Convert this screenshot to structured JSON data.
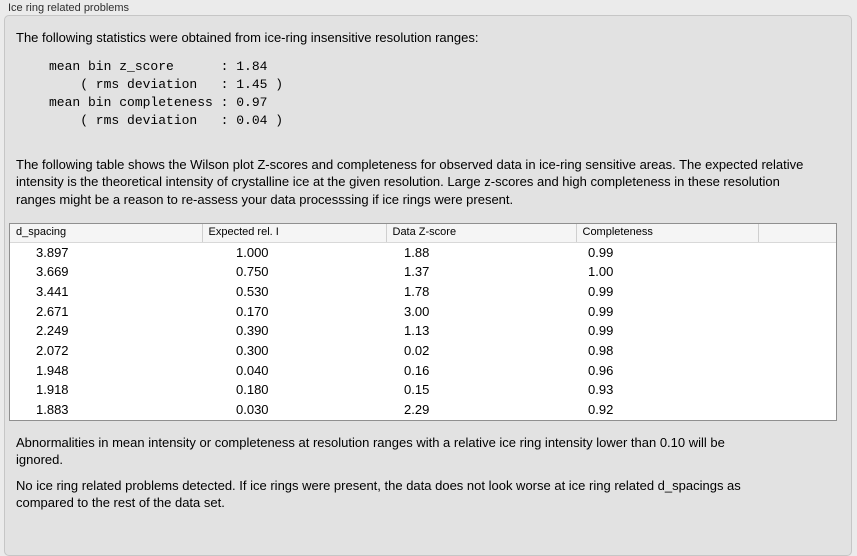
{
  "panel": {
    "label": "Ice ring related problems"
  },
  "colors": {
    "window_bg": "#ebebeb",
    "panel_bg": "#e2e2e2",
    "panel_border": "#c6c6c6",
    "table_bg": "#ffffff",
    "table_border": "#8f8f8f",
    "header_bg": "#f5f5f5",
    "text": "#000000"
  },
  "intro": "The following statistics were obtained from ice-ring insensitive resolution ranges:",
  "stats": {
    "lines": [
      "mean bin z_score      : 1.84",
      "    ( rms deviation   : 1.45 )",
      "mean bin completeness : 0.97",
      "    ( rms deviation   : 0.04 )"
    ],
    "mean_bin_z_score": "1.84",
    "z_score_rms_deviation": "1.45",
    "mean_bin_completeness": "0.97",
    "completeness_rms_deviation": "0.04"
  },
  "table_description": "The following table shows the Wilson plot Z-scores and completeness for observed data in ice-ring sensitive areas. The expected relative intensity is the theoretical intensity of crystalline ice at the given resolution. Large z-scores and high completeness in these resolution ranges might be a reason to re-assess your data processsing if ice rings were present.",
  "table": {
    "headers": [
      "d_spacing",
      "Expected rel. I",
      "Data Z-score",
      "Completeness",
      ""
    ],
    "rows": [
      [
        "3.897",
        "1.000",
        "1.88",
        "0.99"
      ],
      [
        "3.669",
        "0.750",
        "1.37",
        "1.00"
      ],
      [
        "3.441",
        "0.530",
        "1.78",
        "0.99"
      ],
      [
        "2.671",
        "0.170",
        "3.00",
        "0.99"
      ],
      [
        "2.249",
        "0.390",
        "1.13",
        "0.99"
      ],
      [
        "2.072",
        "0.300",
        "0.02",
        "0.98"
      ],
      [
        "1.948",
        "0.040",
        "0.16",
        "0.96"
      ],
      [
        "1.918",
        "0.180",
        "0.15",
        "0.93"
      ],
      [
        "1.883",
        "0.030",
        "2.29",
        "0.92"
      ]
    ]
  },
  "notes": {
    "ignore_note": "Abnormalities in mean intensity or completeness at resolution ranges with a relative ice ring intensity lower than 0.10 will be ignored.",
    "conclusion": "No ice ring related problems detected. If ice rings were present, the data does not look worse at ice ring related d_spacings as compared to the rest of the data set."
  }
}
